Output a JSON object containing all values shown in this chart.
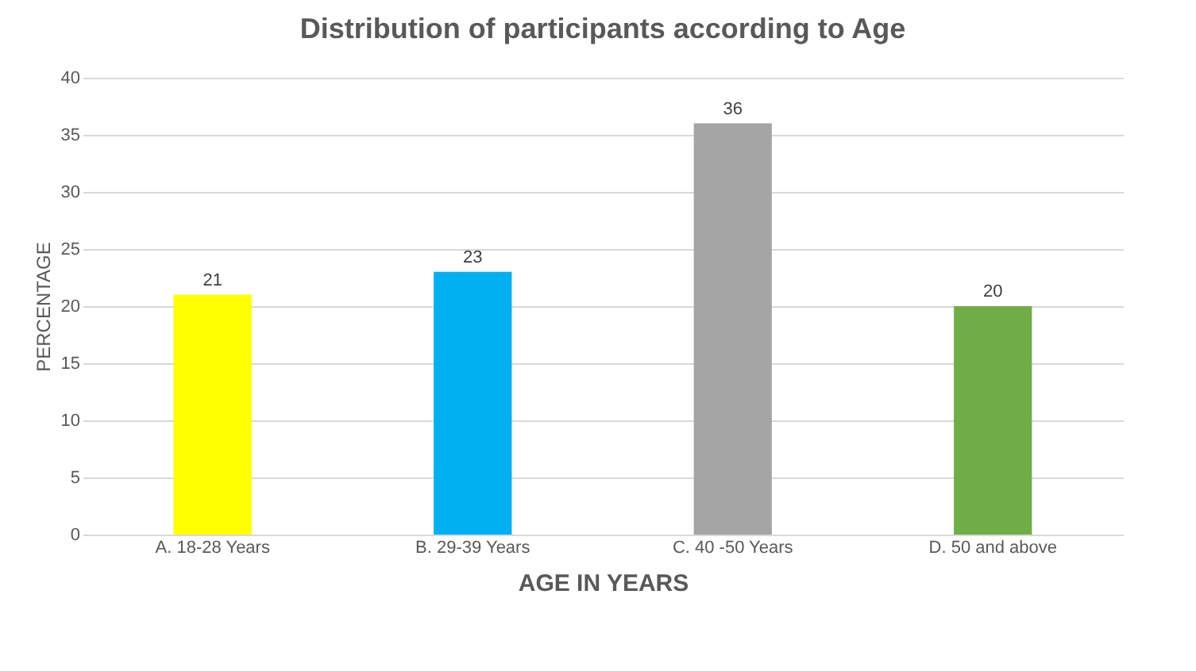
{
  "chart_data": {
    "type": "bar",
    "title": "Distribution of participants according to Age",
    "xlabel": "AGE IN YEARS",
    "ylabel": "PERCENTAGE",
    "categories": [
      "A. 18-28 Years",
      "B. 29-39 Years",
      "C. 40 -50 Years",
      "D. 50 and above"
    ],
    "values": [
      21,
      23,
      36,
      20
    ],
    "colors": [
      "#ffff00",
      "#00b0f0",
      "#a5a5a5",
      "#70ad47"
    ],
    "ylim": [
      0,
      40
    ],
    "yticks": [
      0,
      5,
      10,
      15,
      20,
      25,
      30,
      35,
      40
    ],
    "grid": "y",
    "data_labels": true
  }
}
